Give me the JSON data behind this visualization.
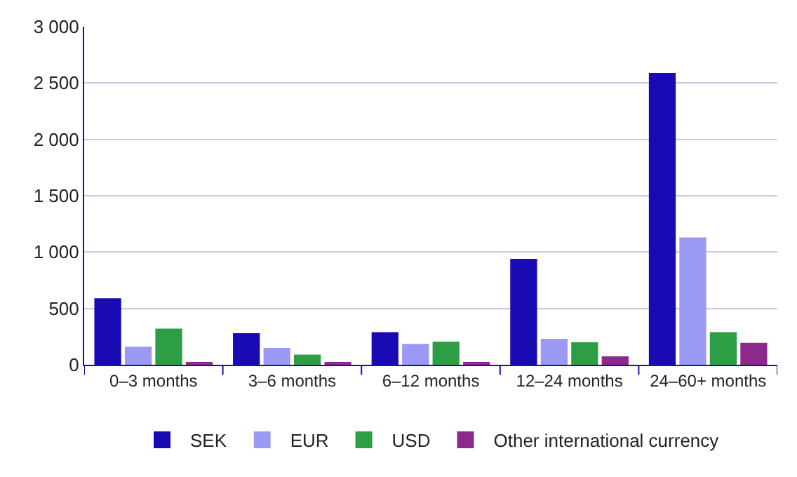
{
  "chart_data": {
    "type": "bar",
    "categories": [
      "0–3 months",
      "3–6 months",
      "6–12 months",
      "12–24 months",
      "24–60+ months"
    ],
    "series": [
      {
        "name": "SEK",
        "color": "#1a0ab4",
        "values": [
          590,
          280,
          290,
          940,
          2590
        ]
      },
      {
        "name": "EUR",
        "color": "#9a9af5",
        "values": [
          160,
          150,
          185,
          230,
          1130
        ]
      },
      {
        "name": "USD",
        "color": "#2e9e46",
        "values": [
          320,
          90,
          205,
          200,
          290
        ]
      },
      {
        "name": "Other international currency",
        "color": "#8c2a8c",
        "values": [
          15,
          25,
          25,
          75,
          195
        ]
      }
    ],
    "ylim": [
      0,
      3000
    ],
    "yticks": [
      0,
      500,
      {
        "value": 1000,
        "label": "1 000"
      },
      {
        "value": 1500,
        "label": "1 500"
      },
      {
        "value": 2000,
        "label": "2 000"
      },
      {
        "value": 2500,
        "label": "2 500"
      },
      {
        "value": 3000,
        "label": "3 000"
      }
    ],
    "grid": "y",
    "legend": "bottom"
  }
}
